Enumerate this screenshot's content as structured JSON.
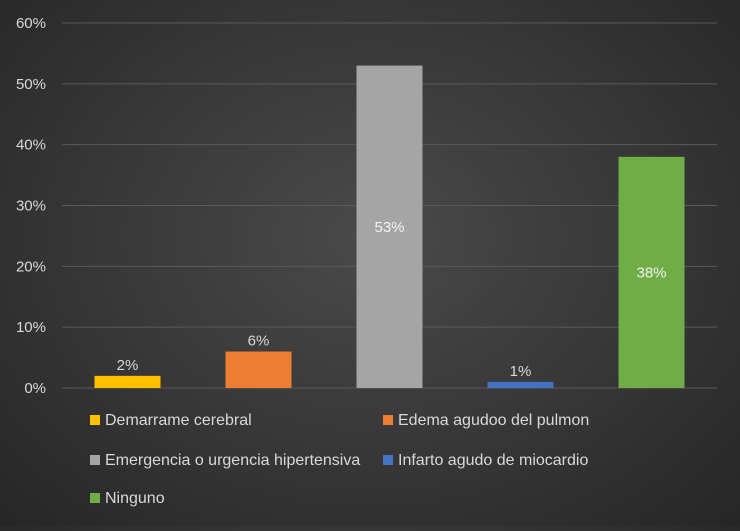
{
  "chart_data": {
    "type": "bar",
    "title": "",
    "xlabel": "",
    "ylabel": "",
    "ylim": [
      0,
      60
    ],
    "yticks": [
      0,
      10,
      20,
      30,
      40,
      50,
      60
    ],
    "ytick_labels": [
      "0%",
      "10%",
      "20%",
      "30%",
      "40%",
      "50%",
      "60%"
    ],
    "grid": true,
    "legend_position": "bottom",
    "series": [
      {
        "name": "Demarrame cerebral",
        "value": 2,
        "label": "2%",
        "color": "#FFC000",
        "label_color": "#d9d9d9"
      },
      {
        "name": "Edema agudoo del pulmon",
        "value": 6,
        "label": "6%",
        "color": "#ED7D31",
        "label_color": "#d9d9d9"
      },
      {
        "name": "Emergencia o urgencia hipertensiva",
        "value": 53,
        "label": "53%",
        "color": "#A5A5A5",
        "label_color": "#f2f2f2"
      },
      {
        "name": "Infarto agudo de miocardio",
        "value": 1,
        "label": "1%",
        "color": "#4472C4",
        "label_color": "#d9d9d9"
      },
      {
        "name": "Ninguno",
        "value": 38,
        "label": "38%",
        "color": "#70AD47",
        "label_color": "#f2f2f2"
      }
    ]
  }
}
